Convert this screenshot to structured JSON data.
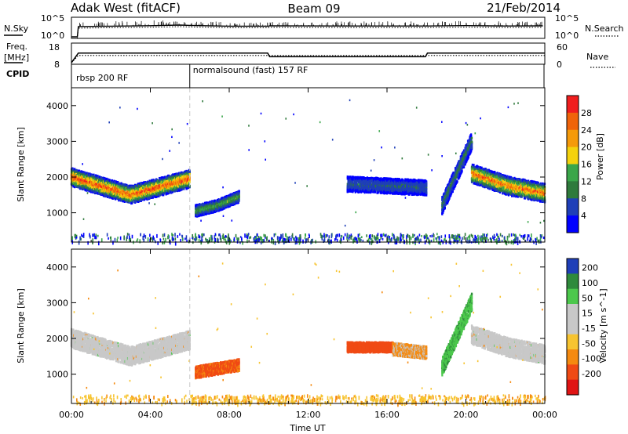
{
  "header": {
    "station": "Adak West (fitACF)",
    "beam": "Beam 09",
    "date": "21/Feb/2014"
  },
  "top_panels": {
    "nsky_label": "N.Sky",
    "nsearch_label": "N.Search",
    "nsky_ticks": [
      "10^5",
      "10^0"
    ],
    "nsearch_ticks": [
      "10^5",
      "10^0"
    ],
    "freq_label_1": "Freq.",
    "freq_label_2": "[MHz]",
    "freq_ticks": [
      "18",
      "8"
    ],
    "nave_label": "Nave",
    "nave_ticks": [
      "60",
      "0"
    ],
    "cpid_label": "CPID",
    "cpid_segments": [
      {
        "label": "rbsp 200 RF",
        "start_hour": 0,
        "end_hour": 6
      },
      {
        "label": "normalsound (fast) 157 RF",
        "start_hour": 6,
        "end_hour": 24
      }
    ]
  },
  "chart_data": [
    {
      "type": "line",
      "panel": "N.Sky / N.Search",
      "ylabel": "N.Sky",
      "y2label": "N.Search",
      "yscale": "log",
      "ylim": [
        1,
        100000
      ],
      "x": [
        0.0,
        0.3,
        0.35,
        2.0,
        4.0,
        5.5,
        6.0,
        8.0,
        10.0,
        10.05,
        14.0,
        18.0,
        20.0,
        22.0,
        23.9
      ],
      "series": [
        {
          "values": [
            1,
            1,
            700,
            900,
            1200,
            1800,
            1500,
            900,
            900,
            1100,
            1000,
            1000,
            1300,
            1000,
            1100
          ]
        }
      ]
    },
    {
      "type": "line",
      "panel": "Frequency / Nave",
      "ylabel": "Freq. [MHz]",
      "y2label": "Nave",
      "ylim": [
        8,
        18
      ],
      "y2lim": [
        0,
        60
      ],
      "x": [
        0.0,
        0.35,
        6.0,
        9.95,
        10.05,
        17.95,
        18.05,
        24.0
      ],
      "series": [
        {
          "name": "Freq.",
          "values": [
            8,
            13.3,
            13.3,
            13.3,
            11.3,
            11.3,
            13.3,
            13.3
          ]
        },
        {
          "name": "Nave",
          "values": [
            0,
            24,
            24,
            24,
            24,
            24,
            24,
            24
          ]
        }
      ]
    },
    {
      "type": "heatmap",
      "panel": "Power",
      "ylabel": "Slant Range [km]",
      "colorbar_label": "Power [dB]",
      "colorbar_ticks": [
        "4",
        "8",
        "12",
        "16",
        "20",
        "24",
        "28"
      ],
      "xlim": [
        0,
        24
      ],
      "ylim": [
        180,
        4500
      ],
      "yticks": [
        "1000",
        "2000",
        "3000",
        "4000"
      ],
      "features": [
        {
          "t_start": 0.0,
          "t_end": 6.0,
          "range_start_km": 2000,
          "range_mid_km": 1500,
          "range_end_km": 1950,
          "width_km": 500,
          "peak_db": 28
        },
        {
          "t_start": 6.3,
          "t_end": 8.5,
          "range_start_km": 1050,
          "range_mid_km": 1200,
          "range_end_km": 1450,
          "width_km": 320,
          "peak_db": 14
        },
        {
          "t_start": 14.0,
          "t_end": 18.0,
          "range_start_km": 1800,
          "range_mid_km": 1750,
          "range_end_km": 1700,
          "width_km": 420,
          "peak_db": 8
        },
        {
          "t_start": 18.8,
          "t_end": 20.3,
          "range_start_km": 1200,
          "range_mid_km": 2100,
          "range_end_km": 3000,
          "width_km": 500,
          "peak_db": 10
        },
        {
          "t_start": 20.3,
          "t_end": 24.0,
          "range_start_km": 2100,
          "range_mid_km": 1750,
          "range_end_km": 1550,
          "width_km": 520,
          "peak_db": 26
        }
      ]
    },
    {
      "type": "heatmap",
      "panel": "Velocity",
      "ylabel": "Slant Range [km]",
      "colorbar_label": "Velocity [m s^-1]",
      "colorbar_ticks": [
        "200",
        "100",
        "50",
        "15",
        "-15",
        "-50",
        "-100",
        "-200"
      ],
      "xlim": [
        0,
        24
      ],
      "ylim": [
        180,
        4500
      ],
      "yticks": [
        "1000",
        "2000",
        "3000",
        "4000"
      ],
      "features": [
        {
          "t_start": 0.0,
          "t_end": 6.0,
          "range_start_km": 2000,
          "range_mid_km": 1500,
          "range_end_km": 1950,
          "width_km": 520,
          "velocity_ms": 0
        },
        {
          "t_start": 6.3,
          "t_end": 8.5,
          "range_start_km": 1050,
          "range_mid_km": 1150,
          "range_end_km": 1250,
          "width_km": 330,
          "velocity_ms": -60
        },
        {
          "t_start": 14.0,
          "t_end": 16.3,
          "range_start_km": 1750,
          "range_mid_km": 1750,
          "range_end_km": 1750,
          "width_km": 280,
          "velocity_ms": -70
        },
        {
          "t_start": 16.3,
          "t_end": 18.0,
          "range_start_km": 1700,
          "range_mid_km": 1650,
          "range_end_km": 1600,
          "width_km": 350,
          "velocity_ms": -20
        },
        {
          "t_start": 18.8,
          "t_end": 20.3,
          "range_start_km": 1200,
          "range_mid_km": 2100,
          "range_end_km": 3000,
          "width_km": 500,
          "velocity_ms": 40
        },
        {
          "t_start": 20.3,
          "t_end": 24.0,
          "range_start_km": 2100,
          "range_mid_km": 1750,
          "range_end_km": 1550,
          "width_km": 520,
          "velocity_ms": 0
        }
      ]
    }
  ],
  "x_axis": {
    "label": "Time UT",
    "ticks": [
      "00:00",
      "04:00",
      "08:00",
      "12:00",
      "16:00",
      "20:00",
      "00:00"
    ]
  },
  "colors": {
    "power_scale": [
      "#0000ff",
      "#1f3fb8",
      "#2f7a3c",
      "#3aa64a",
      "#f4d20d",
      "#f59a0a",
      "#f0640a",
      "#f01e1e"
    ],
    "velocity_scale": [
      "#e01414",
      "#f04a14",
      "#f58a10",
      "#f7c430",
      "#c8c8c8",
      "#4cc84c",
      "#2f8a3c",
      "#1f3fb8"
    ],
    "ground_scatter": "#808080"
  }
}
